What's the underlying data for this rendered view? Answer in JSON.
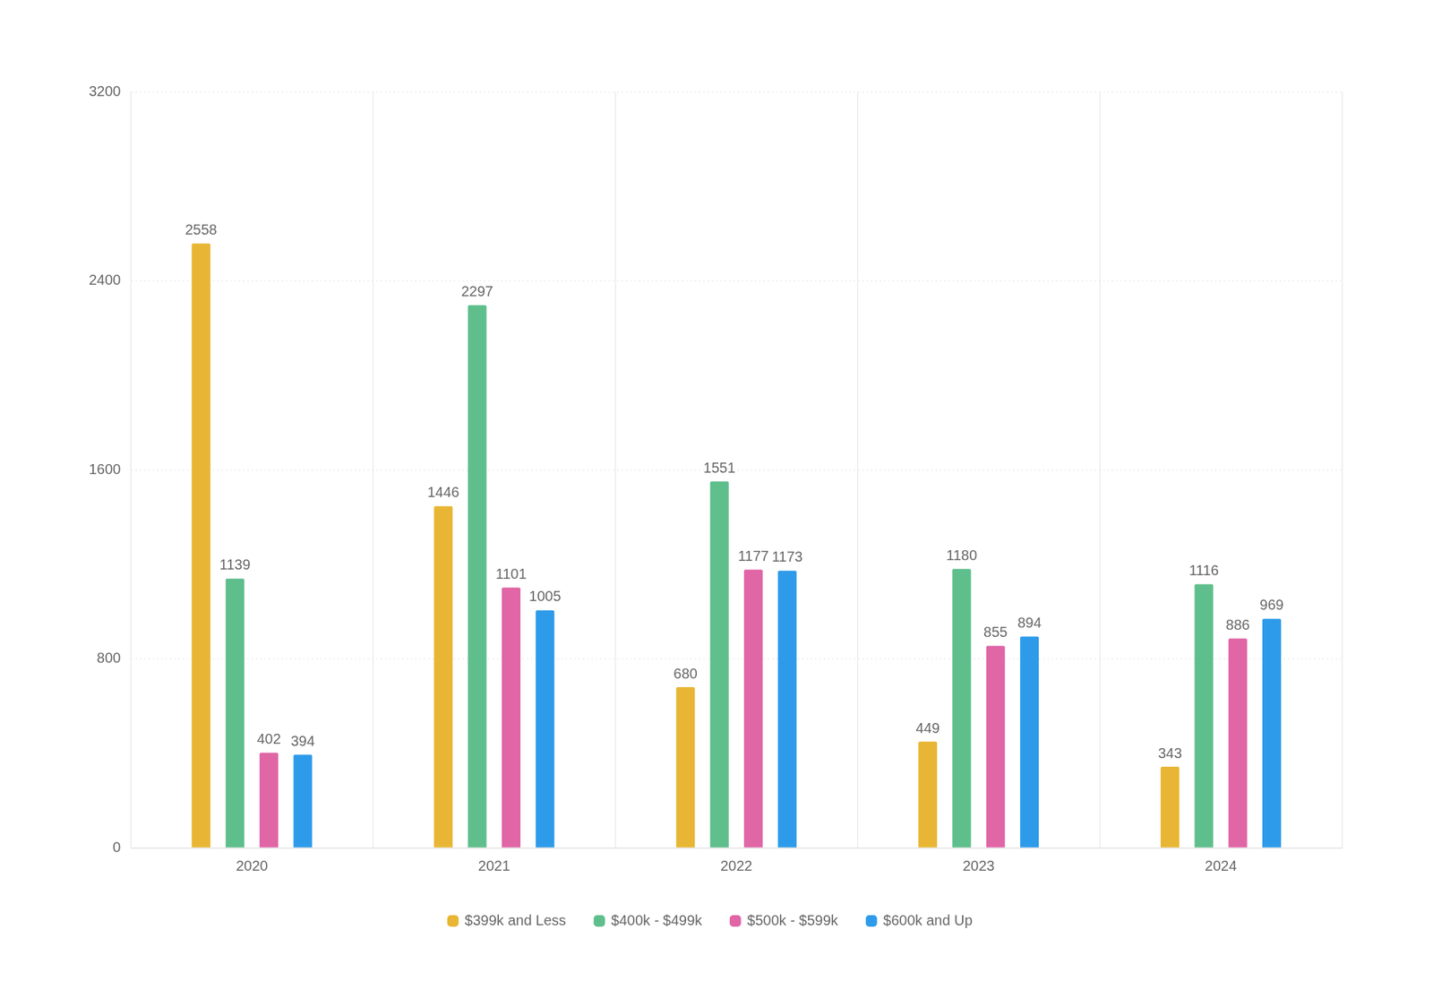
{
  "chart_data": {
    "type": "bar",
    "categories": [
      "2020",
      "2021",
      "2022",
      "2023",
      "2024"
    ],
    "series": [
      {
        "name": "$399k and Less",
        "color": "#E8B634",
        "values": [
          2558,
          1446,
          680,
          449,
          343
        ]
      },
      {
        "name": "$400k - $499k",
        "color": "#5FBF8C",
        "values": [
          1139,
          2297,
          1551,
          1180,
          1116
        ]
      },
      {
        "name": "$500k - $599k",
        "color": "#E066A6",
        "values": [
          402,
          1101,
          1177,
          855,
          886
        ]
      },
      {
        "name": "$600k and Up",
        "color": "#2E9BEA",
        "values": [
          394,
          1005,
          1173,
          894,
          969
        ]
      }
    ],
    "ylim": [
      0,
      3200
    ],
    "yticks": [
      0,
      800,
      1600,
      2400,
      3200
    ],
    "grid": true,
    "legend": "bottom",
    "data_labels": true
  }
}
